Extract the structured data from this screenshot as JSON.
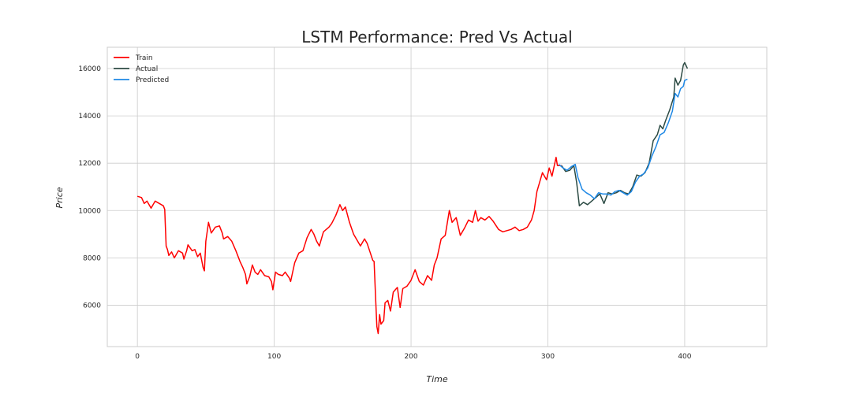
{
  "chart_data": {
    "type": "line",
    "title": "LSTM Performance: Pred Vs Actual",
    "xlabel": "Time",
    "ylabel": "Price",
    "xlim": [
      -22,
      460
    ],
    "ylim": [
      4250,
      16900
    ],
    "xticks": [
      0,
      100,
      200,
      300,
      400
    ],
    "yticks": [
      6000,
      8000,
      10000,
      12000,
      14000,
      16000
    ],
    "grid": true,
    "legend_position": "top-left",
    "series": [
      {
        "name": "Train",
        "color": "#ff0000",
        "points": [
          [
            0,
            10600
          ],
          [
            3,
            10550
          ],
          [
            5,
            10300
          ],
          [
            7,
            10400
          ],
          [
            10,
            10100
          ],
          [
            13,
            10400
          ],
          [
            16,
            10300
          ],
          [
            19,
            10200
          ],
          [
            20,
            10050
          ],
          [
            21,
            8500
          ],
          [
            22,
            8350
          ],
          [
            23,
            8100
          ],
          [
            25,
            8250
          ],
          [
            27,
            8000
          ],
          [
            30,
            8300
          ],
          [
            33,
            8200
          ],
          [
            34,
            7950
          ],
          [
            36,
            8300
          ],
          [
            37,
            8550
          ],
          [
            40,
            8300
          ],
          [
            42,
            8350
          ],
          [
            44,
            8050
          ],
          [
            46,
            8200
          ],
          [
            48,
            7600
          ],
          [
            49,
            7450
          ],
          [
            50,
            8700
          ],
          [
            52,
            9500
          ],
          [
            54,
            9050
          ],
          [
            57,
            9300
          ],
          [
            60,
            9350
          ],
          [
            62,
            9050
          ],
          [
            63,
            8800
          ],
          [
            66,
            8900
          ],
          [
            69,
            8700
          ],
          [
            72,
            8300
          ],
          [
            75,
            7850
          ],
          [
            77,
            7600
          ],
          [
            79,
            7300
          ],
          [
            80,
            6900
          ],
          [
            82,
            7200
          ],
          [
            84,
            7700
          ],
          [
            86,
            7400
          ],
          [
            88,
            7300
          ],
          [
            90,
            7500
          ],
          [
            93,
            7250
          ],
          [
            96,
            7200
          ],
          [
            98,
            7000
          ],
          [
            99,
            6650
          ],
          [
            101,
            7400
          ],
          [
            103,
            7300
          ],
          [
            106,
            7250
          ],
          [
            108,
            7400
          ],
          [
            111,
            7150
          ],
          [
            112,
            7000
          ],
          [
            115,
            7800
          ],
          [
            118,
            8200
          ],
          [
            121,
            8300
          ],
          [
            124,
            8850
          ],
          [
            127,
            9200
          ],
          [
            129,
            9000
          ],
          [
            131,
            8700
          ],
          [
            133,
            8500
          ],
          [
            136,
            9100
          ],
          [
            140,
            9300
          ],
          [
            142,
            9450
          ],
          [
            145,
            9800
          ],
          [
            148,
            10250
          ],
          [
            150,
            10000
          ],
          [
            152,
            10150
          ],
          [
            155,
            9500
          ],
          [
            158,
            9000
          ],
          [
            161,
            8700
          ],
          [
            163,
            8500
          ],
          [
            166,
            8800
          ],
          [
            168,
            8600
          ],
          [
            170,
            8250
          ],
          [
            172,
            7900
          ],
          [
            173,
            7850
          ],
          [
            174,
            6400
          ],
          [
            175,
            5100
          ],
          [
            176,
            4800
          ],
          [
            177,
            5600
          ],
          [
            178,
            5200
          ],
          [
            180,
            5350
          ],
          [
            181,
            6100
          ],
          [
            183,
            6200
          ],
          [
            185,
            5750
          ],
          [
            187,
            6550
          ],
          [
            190,
            6750
          ],
          [
            192,
            5900
          ],
          [
            194,
            6700
          ],
          [
            197,
            6800
          ],
          [
            200,
            7050
          ],
          [
            203,
            7500
          ],
          [
            206,
            7000
          ],
          [
            209,
            6850
          ],
          [
            212,
            7250
          ],
          [
            215,
            7050
          ],
          [
            217,
            7700
          ],
          [
            219,
            8000
          ],
          [
            222,
            8800
          ],
          [
            225,
            8950
          ],
          [
            228,
            10000
          ],
          [
            230,
            9500
          ],
          [
            233,
            9700
          ],
          [
            236,
            8950
          ],
          [
            239,
            9250
          ],
          [
            242,
            9600
          ],
          [
            245,
            9500
          ],
          [
            247,
            10000
          ],
          [
            249,
            9550
          ],
          [
            251,
            9700
          ],
          [
            254,
            9600
          ],
          [
            257,
            9750
          ],
          [
            260,
            9550
          ],
          [
            264,
            9200
          ],
          [
            267,
            9100
          ],
          [
            270,
            9150
          ],
          [
            273,
            9200
          ],
          [
            276,
            9300
          ],
          [
            279,
            9150
          ],
          [
            282,
            9200
          ],
          [
            285,
            9300
          ],
          [
            288,
            9600
          ],
          [
            290,
            10000
          ],
          [
            292,
            10800
          ],
          [
            294,
            11200
          ],
          [
            296,
            11600
          ],
          [
            299,
            11300
          ],
          [
            301,
            11800
          ],
          [
            303,
            11450
          ],
          [
            306,
            12250
          ],
          [
            307,
            11900
          ],
          [
            310,
            11900
          ]
        ]
      },
      {
        "name": "Actual",
        "color": "#2b4a43",
        "points": [
          [
            310,
            11900
          ],
          [
            313,
            11650
          ],
          [
            316,
            11700
          ],
          [
            319,
            11900
          ],
          [
            321,
            11200
          ],
          [
            323,
            10200
          ],
          [
            326,
            10350
          ],
          [
            329,
            10250
          ],
          [
            332,
            10400
          ],
          [
            335,
            10550
          ],
          [
            338,
            10700
          ],
          [
            341,
            10300
          ],
          [
            344,
            10750
          ],
          [
            347,
            10700
          ],
          [
            350,
            10750
          ],
          [
            353,
            10850
          ],
          [
            356,
            10750
          ],
          [
            359,
            10700
          ],
          [
            362,
            11000
          ],
          [
            365,
            11500
          ],
          [
            368,
            11450
          ],
          [
            371,
            11600
          ],
          [
            374,
            12000
          ],
          [
            377,
            12950
          ],
          [
            380,
            13200
          ],
          [
            382,
            13600
          ],
          [
            384,
            13450
          ],
          [
            386,
            13800
          ],
          [
            389,
            14250
          ],
          [
            392,
            14800
          ],
          [
            393,
            15600
          ],
          [
            395,
            15300
          ],
          [
            397,
            15500
          ],
          [
            399,
            16150
          ],
          [
            400,
            16250
          ],
          [
            402,
            16000
          ]
        ]
      },
      {
        "name": "Predicted",
        "color": "#1e88e5",
        "points": [
          [
            308,
            11950
          ],
          [
            311,
            11800
          ],
          [
            314,
            11700
          ],
          [
            317,
            11850
          ],
          [
            320,
            11950
          ],
          [
            322,
            11400
          ],
          [
            325,
            10900
          ],
          [
            328,
            10750
          ],
          [
            331,
            10650
          ],
          [
            334,
            10500
          ],
          [
            337,
            10750
          ],
          [
            340,
            10700
          ],
          [
            343,
            10700
          ],
          [
            346,
            10650
          ],
          [
            349,
            10800
          ],
          [
            352,
            10850
          ],
          [
            355,
            10750
          ],
          [
            358,
            10650
          ],
          [
            361,
            10800
          ],
          [
            364,
            11200
          ],
          [
            367,
            11450
          ],
          [
            370,
            11550
          ],
          [
            373,
            11800
          ],
          [
            376,
            12300
          ],
          [
            379,
            12700
          ],
          [
            382,
            13200
          ],
          [
            385,
            13300
          ],
          [
            388,
            13700
          ],
          [
            391,
            14200
          ],
          [
            393,
            14950
          ],
          [
            395,
            14800
          ],
          [
            397,
            15150
          ],
          [
            399,
            15250
          ],
          [
            400,
            15500
          ],
          [
            402,
            15550
          ]
        ]
      }
    ]
  }
}
